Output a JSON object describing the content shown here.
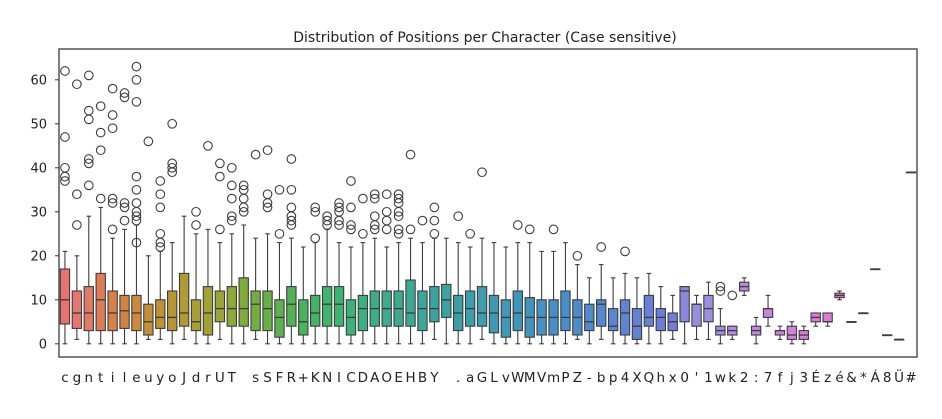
{
  "chart_data": {
    "type": "boxplot",
    "title": "Distribution of Positions per Character (Case sensitive)",
    "xlabel": "",
    "ylabel": "",
    "ylim": [
      -3,
      67
    ],
    "yticks": [
      0,
      10,
      20,
      30,
      40,
      50,
      60
    ],
    "grid": false,
    "legend": "none",
    "categories": [
      "c",
      "g",
      "n",
      "t",
      "i",
      "l",
      "e",
      "u",
      "y",
      "o",
      "J",
      "d",
      "r",
      "U",
      "T",
      " ",
      "s",
      "S",
      "F",
      "R",
      "+",
      "K",
      "N",
      "I",
      "C",
      "D",
      "A",
      "O",
      "E",
      "H",
      "B",
      "Y",
      " ",
      ".",
      "a",
      "G",
      "L",
      "v",
      "W",
      "M",
      "V",
      "m",
      "P",
      "Z",
      "-",
      "b",
      "p",
      "4",
      "X",
      "Q",
      "h",
      "x",
      "0",
      "'",
      "1",
      "w",
      "k",
      "2",
      ":",
      "7",
      "f",
      "j",
      "3",
      "É",
      "z",
      "é",
      "&",
      "*",
      "Á",
      "8",
      "Ü",
      "#"
    ],
    "boxes": [
      {
        "label": "c",
        "min": 0,
        "q1": 4.5,
        "median": 10,
        "q3": 17,
        "max": 21,
        "outliers": [
          37,
          38,
          40,
          47,
          62
        ],
        "color": "#e8726e"
      },
      {
        "label": "g",
        "min": 1,
        "q1": 3.5,
        "median": 7,
        "q3": 12,
        "max": 20,
        "outliers": [
          27,
          34,
          59
        ],
        "color": "#e47670"
      },
      {
        "label": "n",
        "min": 0,
        "q1": 3,
        "median": 7,
        "q3": 13,
        "max": 29,
        "outliers": [
          36,
          41,
          42,
          51,
          53,
          61
        ],
        "color": "#e07a62"
      },
      {
        "label": "t",
        "min": 0,
        "q1": 3,
        "median": 10,
        "q3": 16,
        "max": 31,
        "outliers": [
          33,
          44,
          48,
          54
        ],
        "color": "#de7c58"
      },
      {
        "label": "i",
        "min": 0,
        "q1": 3,
        "median": 7,
        "q3": 12,
        "max": 24,
        "outliers": [
          26,
          32,
          33,
          49,
          52,
          58
        ],
        "color": "#d8804a"
      },
      {
        "label": "l",
        "min": 0,
        "q1": 3.5,
        "median": 7.5,
        "q3": 11,
        "max": 26,
        "outliers": [
          28,
          31,
          32,
          56,
          57
        ],
        "color": "#d4823e"
      },
      {
        "label": "e",
        "min": 0,
        "q1": 3,
        "median": 7,
        "q3": 11,
        "max": 27,
        "outliers": [
          23,
          28,
          29,
          30,
          32,
          35,
          38,
          55,
          60,
          63
        ],
        "color": "#cc8a3c"
      },
      {
        "label": "u",
        "min": 1,
        "q1": 2,
        "median": 5,
        "q3": 9,
        "max": 20,
        "outliers": [
          46
        ],
        "color": "#c68e38"
      },
      {
        "label": "y",
        "min": 1,
        "q1": 3.5,
        "median": 6,
        "q3": 10,
        "max": 21,
        "outliers": [
          22,
          23,
          25,
          31,
          34,
          37
        ],
        "color": "#c09236"
      },
      {
        "label": "o",
        "min": 0,
        "q1": 3,
        "median": 6,
        "q3": 12,
        "max": 23,
        "outliers": [
          39,
          40,
          41,
          50
        ],
        "color": "#b89634"
      },
      {
        "label": "J",
        "min": 1,
        "q1": 4,
        "median": 7,
        "q3": 16,
        "max": 29,
        "outliers": [],
        "color": "#b09a34"
      },
      {
        "label": "d",
        "min": 0,
        "q1": 3,
        "median": 5,
        "q3": 10,
        "max": 25,
        "outliers": [
          27,
          30
        ],
        "color": "#a89e34"
      },
      {
        "label": "r",
        "min": 0,
        "q1": 2,
        "median": 7,
        "q3": 13,
        "max": 26,
        "outliers": [
          45
        ],
        "color": "#a0a234"
      },
      {
        "label": "U",
        "min": 1,
        "q1": 5,
        "median": 8,
        "q3": 12,
        "max": 23,
        "outliers": [
          26,
          38,
          41
        ],
        "color": "#98a636"
      },
      {
        "label": "T",
        "min": 0,
        "q1": 4,
        "median": 8,
        "q3": 13,
        "max": 25,
        "outliers": [
          28,
          29,
          33,
          36,
          40
        ],
        "color": "#8caa38"
      },
      {
        "label": " ",
        "min": 0,
        "q1": 4,
        "median": 8,
        "q3": 15,
        "max": 27,
        "outliers": [
          30,
          31,
          33,
          35,
          36
        ],
        "color": "#80ac3c"
      },
      {
        "label": "s",
        "min": 1,
        "q1": 3,
        "median": 9,
        "q3": 12,
        "max": 24,
        "outliers": [
          43
        ],
        "color": "#74ae42"
      },
      {
        "label": "S",
        "min": 0,
        "q1": 3,
        "median": 8,
        "q3": 12,
        "max": 25,
        "outliers": [
          31,
          32,
          34,
          44
        ],
        "color": "#68b048"
      },
      {
        "label": "F",
        "min": 0,
        "q1": 1.5,
        "median": 6,
        "q3": 10,
        "max": 23,
        "outliers": [
          25,
          35
        ],
        "color": "#5cb250"
      },
      {
        "label": "R",
        "min": 0,
        "q1": 4,
        "median": 9,
        "q3": 13,
        "max": 24,
        "outliers": [
          27,
          28,
          29,
          31,
          35,
          42
        ],
        "color": "#50b456"
      },
      {
        "label": "+",
        "min": 0,
        "q1": 2,
        "median": 5,
        "q3": 10,
        "max": 22,
        "outliers": [],
        "color": "#48b45e"
      },
      {
        "label": "K",
        "min": 0,
        "q1": 4,
        "median": 7,
        "q3": 11,
        "max": 23,
        "outliers": [
          24,
          30,
          31
        ],
        "color": "#42b466"
      },
      {
        "label": "N",
        "min": 0,
        "q1": 4,
        "median": 9,
        "q3": 13,
        "max": 26,
        "outliers": [
          27,
          28,
          29
        ],
        "color": "#3eb46c"
      },
      {
        "label": "I",
        "min": 0,
        "q1": 4,
        "median": 9,
        "q3": 13,
        "max": 23,
        "outliers": [
          27,
          28,
          30,
          31,
          32
        ],
        "color": "#3cb474"
      },
      {
        "label": "C",
        "min": 0,
        "q1": 2,
        "median": 6,
        "q3": 10,
        "max": 22,
        "outliers": [
          26,
          27,
          31,
          37
        ],
        "color": "#3cb27a"
      },
      {
        "label": "D",
        "min": 0,
        "q1": 3,
        "median": 8,
        "q3": 11,
        "max": 23,
        "outliers": [
          25,
          33
        ],
        "color": "#3cb080"
      },
      {
        "label": "A",
        "min": 0,
        "q1": 4,
        "median": 8,
        "q3": 12,
        "max": 24,
        "outliers": [
          26,
          27,
          29,
          33,
          34
        ],
        "color": "#3cae86"
      },
      {
        "label": "O",
        "min": 0,
        "q1": 4,
        "median": 8,
        "q3": 12,
        "max": 22,
        "outliers": [
          26,
          28,
          30,
          34
        ],
        "color": "#3cac8c"
      },
      {
        "label": "E",
        "min": 0,
        "q1": 4,
        "median": 8,
        "q3": 12,
        "max": 23,
        "outliers": [
          25,
          26,
          29,
          30,
          32,
          33,
          34
        ],
        "color": "#3caa90"
      },
      {
        "label": "H",
        "min": 0,
        "q1": 4,
        "median": 7,
        "q3": 14.5,
        "max": 24,
        "outliers": [
          26,
          43
        ],
        "color": "#3ca896"
      },
      {
        "label": "B",
        "min": 0,
        "q1": 3,
        "median": 8,
        "q3": 12,
        "max": 23,
        "outliers": [
          28
        ],
        "color": "#3ca69a"
      },
      {
        "label": "Y",
        "min": 1,
        "q1": 5,
        "median": 8,
        "q3": 13,
        "max": 24,
        "outliers": [
          25,
          28,
          31
        ],
        "color": "#3ca49e"
      },
      {
        "label": " ",
        "min": 0,
        "q1": 6,
        "median": 10,
        "q3": 13.5,
        "max": 24,
        "outliers": [],
        "color": "#3ca2a2"
      },
      {
        "label": ".",
        "min": 0,
        "q1": 3,
        "median": 7,
        "q3": 11,
        "max": 23,
        "outliers": [
          29
        ],
        "color": "#3ca0a6"
      },
      {
        "label": "a",
        "min": 0,
        "q1": 4,
        "median": 8,
        "q3": 12,
        "max": 22,
        "outliers": [
          25
        ],
        "color": "#3c9eaa"
      },
      {
        "label": "G",
        "min": 1,
        "q1": 4,
        "median": 7,
        "q3": 13,
        "max": 24,
        "outliers": [
          39
        ],
        "color": "#3e9cae"
      },
      {
        "label": "L",
        "min": 0,
        "q1": 2.5,
        "median": 7,
        "q3": 11,
        "max": 23,
        "outliers": [],
        "color": "#3e9ab2"
      },
      {
        "label": "v",
        "min": 0,
        "q1": 1.5,
        "median": 6,
        "q3": 10,
        "max": 22,
        "outliers": [],
        "color": "#4098b6"
      },
      {
        "label": "W",
        "min": 0,
        "q1": 3,
        "median": 7,
        "q3": 12,
        "max": 23,
        "outliers": [
          27
        ],
        "color": "#4096ba"
      },
      {
        "label": "M",
        "min": 0,
        "q1": 1.5,
        "median": 6,
        "q3": 10.5,
        "max": 23,
        "outliers": [
          26
        ],
        "color": "#4294be"
      },
      {
        "label": "V",
        "min": 0,
        "q1": 2,
        "median": 6,
        "q3": 10,
        "max": 21,
        "outliers": [],
        "color": "#4492c2"
      },
      {
        "label": "m",
        "min": 0,
        "q1": 2,
        "median": 6,
        "q3": 10,
        "max": 21,
        "outliers": [
          26
        ],
        "color": "#4690c6"
      },
      {
        "label": "P",
        "min": 0,
        "q1": 3,
        "median": 6,
        "q3": 12,
        "max": 23,
        "outliers": [],
        "color": "#4a8ec8"
      },
      {
        "label": "Z",
        "min": 1,
        "q1": 2,
        "median": 6,
        "q3": 10,
        "max": 18,
        "outliers": [
          20
        ],
        "color": "#4e8cca"
      },
      {
        "label": "-",
        "min": 0,
        "q1": 3,
        "median": 5,
        "q3": 9,
        "max": 15,
        "outliers": [],
        "color": "#528acc"
      },
      {
        "label": "b",
        "min": 1,
        "q1": 4,
        "median": 9,
        "q3": 10,
        "max": 18,
        "outliers": [
          22
        ],
        "color": "#5688ce"
      },
      {
        "label": "p",
        "min": 0,
        "q1": 3,
        "median": 4,
        "q3": 8,
        "max": 15,
        "outliers": [],
        "color": "#5a86d0"
      },
      {
        "label": "4",
        "min": 0,
        "q1": 2,
        "median": 7,
        "q3": 10,
        "max": 16,
        "outliers": [
          21
        ],
        "color": "#5e84d2"
      },
      {
        "label": "X",
        "min": 0,
        "q1": 1,
        "median": 4,
        "q3": 8,
        "max": 15,
        "outliers": [],
        "color": "#6282d4"
      },
      {
        "label": "Q",
        "min": 0,
        "q1": 4,
        "median": 6,
        "q3": 11,
        "max": 16,
        "outliers": [],
        "color": "#6880d6"
      },
      {
        "label": "h",
        "min": 0,
        "q1": 3,
        "median": 6,
        "q3": 8,
        "max": 13,
        "outliers": [],
        "color": "#6e7ed8"
      },
      {
        "label": "x",
        "min": 1,
        "q1": 3,
        "median": 5,
        "q3": 7,
        "max": 11,
        "outliers": [],
        "color": "#747cda"
      },
      {
        "label": "0",
        "min": 0,
        "q1": 5,
        "median": 12,
        "q3": 13,
        "max": 13,
        "outliers": [],
        "color": "#8a88dc"
      },
      {
        "label": "'",
        "min": 1,
        "q1": 4,
        "median": 9,
        "q3": 9,
        "max": 11,
        "outliers": [],
        "color": "#9490de"
      },
      {
        "label": "1",
        "min": 1,
        "q1": 5,
        "median": 8,
        "q3": 11,
        "max": 14,
        "outliers": [],
        "color": "#9e8ee0"
      },
      {
        "label": "w",
        "min": 0,
        "q1": 2,
        "median": 3,
        "q3": 4,
        "max": 8,
        "outliers": [
          12,
          13
        ],
        "color": "#a88ce2"
      },
      {
        "label": "k",
        "min": 1,
        "q1": 2,
        "median": 3,
        "q3": 4,
        "max": 4,
        "outliers": [
          11
        ],
        "color": "#b08ae4"
      },
      {
        "label": "2",
        "min": 11,
        "q1": 12,
        "median": 13,
        "q3": 14,
        "max": 15,
        "outliers": [],
        "color": "#b888e4"
      },
      {
        "label": ":",
        "min": 0,
        "q1": 2,
        "median": 3,
        "q3": 4,
        "max": 6,
        "outliers": [],
        "color": "#c086e2"
      },
      {
        "label": "7",
        "min": 4,
        "q1": 6,
        "median": 8,
        "q3": 8,
        "max": 11,
        "outliers": [],
        "color": "#c884e0"
      },
      {
        "label": "f",
        "min": 1,
        "q1": 2,
        "median": 3,
        "q3": 3,
        "max": 4,
        "outliers": [],
        "color": "#ce82de"
      },
      {
        "label": "j",
        "min": 0,
        "q1": 1,
        "median": 2,
        "q3": 4,
        "max": 5,
        "outliers": [],
        "color": "#d480dc"
      },
      {
        "label": "3",
        "min": 0,
        "q1": 1,
        "median": 2,
        "q3": 3,
        "max": 4,
        "outliers": [],
        "color": "#d87eda"
      },
      {
        "label": "É",
        "min": 4,
        "q1": 5,
        "median": 6,
        "q3": 7,
        "max": 7,
        "outliers": [],
        "color": "#dc7cd8"
      },
      {
        "label": "z",
        "min": 4,
        "q1": 5,
        "median": 5,
        "q3": 7,
        "max": 7,
        "outliers": [],
        "color": "#de7ad4"
      },
      {
        "label": "é",
        "min": 10,
        "q1": 10.5,
        "median": 11,
        "q3": 11.5,
        "max": 12,
        "outliers": [],
        "color": "#e078d0"
      },
      {
        "label": "&",
        "min": 5,
        "q1": 5,
        "median": 5,
        "q3": 5,
        "max": 5,
        "outliers": [],
        "color": "#e276cc"
      },
      {
        "label": "*",
        "min": 7,
        "q1": 7,
        "median": 7,
        "q3": 7,
        "max": 7,
        "outliers": [],
        "color": "#e474c8"
      },
      {
        "label": "Á",
        "min": 17,
        "q1": 17,
        "median": 17,
        "q3": 17,
        "max": 17,
        "outliers": [],
        "color": "#e672c4"
      },
      {
        "label": "8",
        "min": 2,
        "q1": 2,
        "median": 2,
        "q3": 2,
        "max": 2,
        "outliers": [],
        "color": "#e870c0"
      },
      {
        "label": "Ü",
        "min": 1,
        "q1": 1,
        "median": 1,
        "q3": 1,
        "max": 1,
        "outliers": [],
        "color": "#ea6ebc"
      },
      {
        "label": "#",
        "min": 39,
        "q1": 39,
        "median": 39,
        "q3": 39,
        "max": 39,
        "outliers": [],
        "color": "#ec6cb8"
      }
    ]
  }
}
